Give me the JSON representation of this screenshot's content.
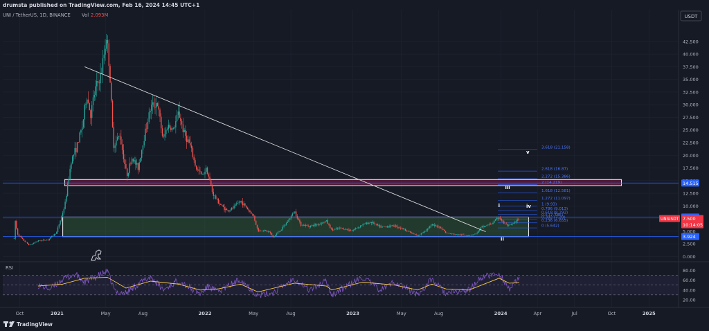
{
  "header": {
    "publisher": "drumsta published on TradingView.com, Feb 16, 2024 14:45 UTC+1",
    "symbol_info": "UNI / TetherUS, 1D, BINANCE",
    "vol_label": "Vol",
    "vol_value": "2.093M"
  },
  "currency_button": "USDT",
  "footer": {
    "brand": "TradingView"
  },
  "rsi_label": "RSI",
  "colors": {
    "background": "#161a25",
    "grid": "#1f2431",
    "axis_text": "#b2b5be",
    "up": "#26a69a",
    "down": "#ef5350",
    "fib": "#2962ff",
    "rsi": "#7e57c2",
    "rsi_ma": "#f7c948",
    "price_badge": "#f23645"
  },
  "chart_data": {
    "type": "candlestick",
    "symbol": "UNI / TetherUS",
    "timeframe": "1D",
    "exchange": "BINANCE",
    "y_axis": {
      "ticks": [
        0.0,
        2.5,
        5.0,
        7.5,
        10.0,
        12.5,
        15.0,
        17.5,
        20.0,
        22.5,
        25.0,
        27.5,
        30.0,
        32.5,
        35.0,
        37.5,
        40.0,
        42.5
      ],
      "tick_labels": [
        "0.000",
        "2.500",
        "5.000",
        "7.500",
        "10.000",
        "12.500",
        "15.000",
        "17.500",
        "20.000",
        "22.500",
        "25.000",
        "27.500",
        "30.000",
        "32.500",
        "35.000",
        "37.500",
        "40.000",
        "42.500"
      ],
      "range": [
        -0.5,
        45.5
      ]
    },
    "x_axis": {
      "ticks": [
        "2020-10-01",
        "2021-01-01",
        "2021-05-01",
        "2021-08-01",
        "2022-01-01",
        "2022-05-01",
        "2022-08-01",
        "2023-01-01",
        "2023-05-01",
        "2023-08-01",
        "2024-01-01",
        "2024-04-01",
        "2024-07-01",
        "2024-10-01",
        "2025-01-01"
      ],
      "tick_labels": [
        "Oct",
        "2021",
        "May",
        "Aug",
        "2022",
        "May",
        "Aug",
        "2023",
        "May",
        "Aug",
        "2024",
        "Apr",
        "Jul",
        "Oct",
        "2025"
      ],
      "range": [
        "2020-08-20",
        "2025-03-15"
      ]
    },
    "price_path": [
      [
        "2020-09-17",
        3.5
      ],
      [
        "2020-09-18",
        8.0
      ],
      [
        "2020-09-25",
        4.5
      ],
      [
        "2020-10-10",
        3.2
      ],
      [
        "2020-10-25",
        2.2
      ],
      [
        "2020-11-15",
        3.1
      ],
      [
        "2020-12-10",
        3.3
      ],
      [
        "2020-12-31",
        4.8
      ],
      [
        "2021-01-20",
        10.0
      ],
      [
        "2021-02-05",
        19.0
      ],
      [
        "2021-02-20",
        22.0
      ],
      [
        "2021-03-05",
        26.0
      ],
      [
        "2021-03-15",
        32.0
      ],
      [
        "2021-03-25",
        28.0
      ],
      [
        "2021-04-05",
        33.0
      ],
      [
        "2021-04-20",
        36.0
      ],
      [
        "2021-05-03",
        43.5
      ],
      [
        "2021-05-10",
        38.0
      ],
      [
        "2021-05-20",
        22.0
      ],
      [
        "2021-06-05",
        24.0
      ],
      [
        "2021-06-22",
        16.0
      ],
      [
        "2021-07-05",
        19.5
      ],
      [
        "2021-07-20",
        17.5
      ],
      [
        "2021-08-05",
        24.0
      ],
      [
        "2021-08-20",
        29.5
      ],
      [
        "2021-09-05",
        30.5
      ],
      [
        "2021-09-20",
        23.0
      ],
      [
        "2021-10-01",
        26.0
      ],
      [
        "2021-10-15",
        25.0
      ],
      [
        "2021-10-28",
        28.5
      ],
      [
        "2021-11-10",
        24.5
      ],
      [
        "2021-11-25",
        22.0
      ],
      [
        "2021-12-10",
        17.5
      ],
      [
        "2021-12-25",
        16.0
      ],
      [
        "2022-01-05",
        17.5
      ],
      [
        "2022-01-20",
        12.5
      ],
      [
        "2022-02-05",
        10.5
      ],
      [
        "2022-02-25",
        9.0
      ],
      [
        "2022-03-10",
        9.5
      ],
      [
        "2022-03-30",
        11.0
      ],
      [
        "2022-04-15",
        9.5
      ],
      [
        "2022-05-01",
        8.0
      ],
      [
        "2022-05-12",
        5.0
      ],
      [
        "2022-05-25",
        5.2
      ],
      [
        "2022-06-10",
        4.8
      ],
      [
        "2022-06-18",
        3.8
      ],
      [
        "2022-07-10",
        5.5
      ],
      [
        "2022-07-25",
        7.0
      ],
      [
        "2022-08-10",
        9.0
      ],
      [
        "2022-08-25",
        6.3
      ],
      [
        "2022-09-15",
        6.0
      ],
      [
        "2022-10-05",
        6.3
      ],
      [
        "2022-10-28",
        7.0
      ],
      [
        "2022-11-10",
        5.2
      ],
      [
        "2022-12-01",
        5.6
      ],
      [
        "2022-12-30",
        5.1
      ],
      [
        "2023-01-25",
        6.3
      ],
      [
        "2023-02-15",
        6.8
      ],
      [
        "2023-03-10",
        5.8
      ],
      [
        "2023-04-15",
        6.1
      ],
      [
        "2023-05-15",
        5.1
      ],
      [
        "2023-06-10",
        4.0
      ],
      [
        "2023-06-20",
        4.6
      ],
      [
        "2023-07-15",
        6.2
      ],
      [
        "2023-08-05",
        5.8
      ],
      [
        "2023-08-20",
        4.6
      ],
      [
        "2023-09-15",
        4.3
      ],
      [
        "2023-10-15",
        4.2
      ],
      [
        "2023-11-01",
        4.5
      ],
      [
        "2023-11-15",
        5.8
      ],
      [
        "2023-12-10",
        6.5
      ],
      [
        "2023-12-28",
        7.8
      ],
      [
        "2024-01-08",
        6.6
      ],
      [
        "2024-01-22",
        6.0
      ],
      [
        "2024-02-05",
        6.7
      ],
      [
        "2024-02-16",
        7.5
      ]
    ],
    "horizontal_lines": [
      {
        "price": 14.515,
        "label": "14.515"
      },
      {
        "price": 7.792,
        "label": "7.792"
      },
      {
        "price": 3.924,
        "label": "3.924"
      }
    ],
    "current_price": {
      "symbol": "UNIUSDT",
      "price": "7.500",
      "countdown": "10:14:05"
    },
    "zones": [
      {
        "from": "2021-01-20",
        "to": "2024-10-25",
        "low": 14.0,
        "high": 15.2
      },
      {
        "from": "2021-01-15",
        "to": "2024-03-10",
        "low": 3.924,
        "high": 7.792
      }
    ],
    "trendline": {
      "from": [
        "2021-03-10",
        37.5
      ],
      "to": [
        "2023-11-25",
        4.9
      ]
    },
    "fib_extension": {
      "from": "2023-12-25",
      "to": "2024-03-31",
      "levels": [
        {
          "ratio": "3.618",
          "price": 21.158
        },
        {
          "ratio": "2.618",
          "price": 16.87
        },
        {
          "ratio": "2.272",
          "price": 15.386
        },
        {
          "ratio": "2",
          "price": 14.219
        },
        {
          "ratio": "1.618",
          "price": 12.581
        },
        {
          "ratio": "1.272",
          "price": 11.097
        },
        {
          "ratio": "1",
          "price": 9.93
        },
        {
          "ratio": "0.786",
          "price": 9.013
        },
        {
          "ratio": "0.618",
          "price": 8.292
        },
        {
          "ratio": "0.5",
          "price": 7.786
        },
        {
          "ratio": "0.382",
          "price": 7.28
        },
        {
          "ratio": "0.236",
          "price": 6.655
        },
        {
          "ratio": "0",
          "price": 5.642
        }
      ]
    },
    "wave_labels": [
      {
        "text": "i",
        "date": "2023-12-28",
        "price": 9.8
      },
      {
        "text": "ii",
        "date": "2024-01-05",
        "price": 3.1
      },
      {
        "text": "iii",
        "date": "2024-01-18",
        "price": 13.3
      },
      {
        "text": "iv",
        "date": "2024-03-10",
        "price": 9.6
      },
      {
        "text": "v",
        "date": "2024-03-08",
        "price": 20.3
      }
    ],
    "rsi": {
      "ticks": [
        20,
        40,
        60,
        80
      ],
      "tick_labels": [
        "20.00",
        "40.00",
        "60.00",
        "80.00"
      ],
      "range": [
        10,
        92
      ],
      "upper_band": 70,
      "lower_band": 30,
      "path": [
        [
          "2020-11-15",
          50
        ],
        [
          "2020-12-15",
          42
        ],
        [
          "2021-01-15",
          62
        ],
        [
          "2021-02-15",
          72
        ],
        [
          "2021-03-10",
          56
        ],
        [
          "2021-04-10",
          68
        ],
        [
          "2021-05-05",
          78
        ],
        [
          "2021-05-25",
          36
        ],
        [
          "2021-06-20",
          34
        ],
        [
          "2021-07-20",
          52
        ],
        [
          "2021-08-20",
          67
        ],
        [
          "2021-09-20",
          40
        ],
        [
          "2021-10-28",
          60
        ],
        [
          "2021-11-25",
          44
        ],
        [
          "2021-12-20",
          32
        ],
        [
          "2022-01-10",
          48
        ],
        [
          "2022-02-01",
          36
        ],
        [
          "2022-03-30",
          62
        ],
        [
          "2022-05-12",
          28
        ],
        [
          "2022-06-20",
          35
        ],
        [
          "2022-08-10",
          64
        ],
        [
          "2022-09-15",
          40
        ],
        [
          "2022-10-28",
          58
        ],
        [
          "2022-11-10",
          30
        ],
        [
          "2023-01-25",
          66
        ],
        [
          "2023-03-10",
          40
        ],
        [
          "2023-04-15",
          57
        ],
        [
          "2023-06-10",
          30
        ],
        [
          "2023-07-15",
          62
        ],
        [
          "2023-08-20",
          32
        ],
        [
          "2023-10-15",
          40
        ],
        [
          "2023-11-15",
          66
        ],
        [
          "2023-12-28",
          74
        ],
        [
          "2024-01-22",
          42
        ],
        [
          "2024-02-16",
          63
        ]
      ],
      "ma_path": [
        [
          "2020-11-15",
          48
        ],
        [
          "2021-01-15",
          52
        ],
        [
          "2021-03-10",
          64
        ],
        [
          "2021-05-05",
          66
        ],
        [
          "2021-06-20",
          44
        ],
        [
          "2021-08-20",
          58
        ],
        [
          "2021-10-28",
          52
        ],
        [
          "2021-12-20",
          40
        ],
        [
          "2022-02-01",
          42
        ],
        [
          "2022-03-30",
          52
        ],
        [
          "2022-05-12",
          36
        ],
        [
          "2022-08-10",
          54
        ],
        [
          "2022-10-28",
          48
        ],
        [
          "2022-11-10",
          40
        ],
        [
          "2023-01-25",
          56
        ],
        [
          "2023-04-15",
          50
        ],
        [
          "2023-06-10",
          40
        ],
        [
          "2023-07-15",
          52
        ],
        [
          "2023-08-20",
          42
        ],
        [
          "2023-10-15",
          40
        ],
        [
          "2023-12-28",
          64
        ],
        [
          "2024-01-22",
          54
        ],
        [
          "2024-02-16",
          55
        ]
      ]
    }
  }
}
